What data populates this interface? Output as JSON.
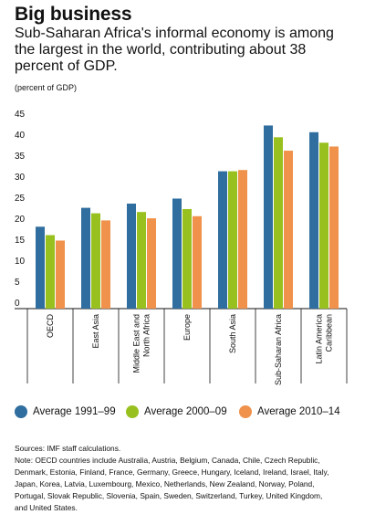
{
  "header": {
    "title": "Big business",
    "subtitle": "Sub-Saharan Africa's informal economy is among the largest in the world, contributing about 38 percent of GDP.",
    "unit": "(percent of GDP)"
  },
  "colors": {
    "series1": "#2f6e9f",
    "series2": "#98c11f",
    "series3": "#f0924b",
    "axis": "#111111",
    "separator": "#111111"
  },
  "chart_data": {
    "type": "bar",
    "categories": [
      [
        "OECD"
      ],
      [
        "East Asia"
      ],
      [
        "Middle East and",
        "North Africa"
      ],
      [
        "Europe"
      ],
      [
        "South Asia"
      ],
      [
        "Sub-Saharan Africa"
      ],
      [
        "Latin America",
        "Caribbean"
      ]
    ],
    "series": [
      {
        "name": "Average 1991–99",
        "values": [
          19.5,
          24.0,
          25.0,
          26.2,
          32.7,
          43.6,
          42.0
        ]
      },
      {
        "name": "Average 2000–09",
        "values": [
          17.5,
          22.7,
          23.0,
          23.7,
          32.7,
          40.8,
          39.5
        ]
      },
      {
        "name": "Average 2010–14",
        "values": [
          16.2,
          21.0,
          21.5,
          22.0,
          33.0,
          37.6,
          38.6
        ]
      }
    ],
    "yticks": [
      0,
      5,
      10,
      15,
      20,
      25,
      30,
      35,
      40,
      45
    ],
    "ylim": [
      0,
      45
    ],
    "ylabel": "(percent of GDP)",
    "grid": false,
    "legend_position": "bottom"
  },
  "notes": {
    "source": "Sources: IMF staff calculations.",
    "note_lines": [
      "Note: OECD countries include Australia, Austria, Belgium, Canada, Chile, Czech Republic,",
      "Denmark, Estonia, Finland, France, Germany, Greece, Hungary, Iceland, Ireland, Israel, Italy,",
      "Japan, Korea, Latvia, Luxembourg, Mexico, Netherlands, New Zealand, Norway, Poland,",
      "Portugal, Slovak Republic, Slovenia, Spain, Sweden, Switzerland, Turkey, United Kingdom,",
      "and United States."
    ]
  }
}
